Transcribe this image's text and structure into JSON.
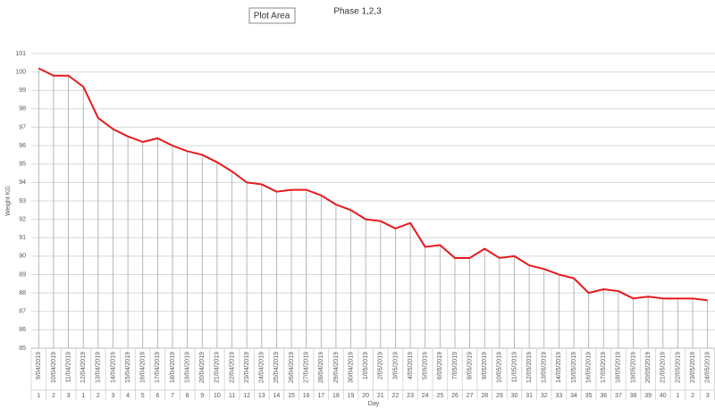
{
  "chart_data": {
    "type": "line",
    "title": "Phase 1,2,3",
    "tooltip": "Plot Area",
    "y_label": "Weight KG",
    "x_label": "Day",
    "categories": [
      "9/04/2019",
      "10/04/2019",
      "11/04/2019",
      "12/04/2019",
      "13/04/2019",
      "14/04/2019",
      "15/04/2019",
      "16/04/2019",
      "17/04/2019",
      "18/04/2019",
      "19/04/2019",
      "20/04/2019",
      "21/04/2019",
      "22/04/2019",
      "23/04/2019",
      "24/04/2019",
      "25/04/2019",
      "26/04/2019",
      "27/04/2019",
      "28/04/2019",
      "29/04/2019",
      "30/04/2019",
      "1/05/2019",
      "2/05/2019",
      "3/05/2019",
      "4/05/2019",
      "5/05/2019",
      "6/05/2019",
      "7/05/2019",
      "8/05/2019",
      "9/05/2019",
      "10/05/2019",
      "11/05/2019",
      "12/05/2019",
      "13/05/2019",
      "14/05/2019",
      "15/05/2019",
      "16/05/2019",
      "17/05/2019",
      "18/05/2019",
      "19/05/2019",
      "20/05/2019",
      "21/05/2019",
      "22/05/2019",
      "23/05/2019",
      "24/05/2019"
    ],
    "days": [
      1,
      2,
      3,
      1,
      2,
      3,
      4,
      5,
      6,
      7,
      8,
      9,
      10,
      11,
      12,
      13,
      14,
      15,
      16,
      17,
      18,
      19,
      20,
      21,
      22,
      23,
      24,
      25,
      26,
      27,
      28,
      29,
      30,
      31,
      32,
      33,
      34,
      35,
      36,
      37,
      38,
      39,
      40,
      1,
      2,
      3
    ],
    "series": [
      {
        "name": "Weight KG",
        "color": "#e8191c",
        "values": [
          100.2,
          99.8,
          99.8,
          99.2,
          97.5,
          96.9,
          96.5,
          96.2,
          96.4,
          96.0,
          95.7,
          95.5,
          95.1,
          94.6,
          94.0,
          93.9,
          93.5,
          93.6,
          93.6,
          93.3,
          92.8,
          92.5,
          92.0,
          91.9,
          91.5,
          91.8,
          90.5,
          90.6,
          89.9,
          89.9,
          90.4,
          89.9,
          90.0,
          89.5,
          89.3,
          89.0,
          88.8,
          88.0,
          88.2,
          88.1,
          87.7,
          87.8,
          87.7,
          87.7,
          87.7,
          87.6
        ]
      }
    ],
    "ylim": [
      85,
      101
    ],
    "yticks": [
      85,
      86,
      87,
      88,
      89,
      90,
      91,
      92,
      93,
      94,
      95,
      96,
      97,
      98,
      99,
      100,
      101
    ],
    "grid": true,
    "drop_lines": true
  }
}
